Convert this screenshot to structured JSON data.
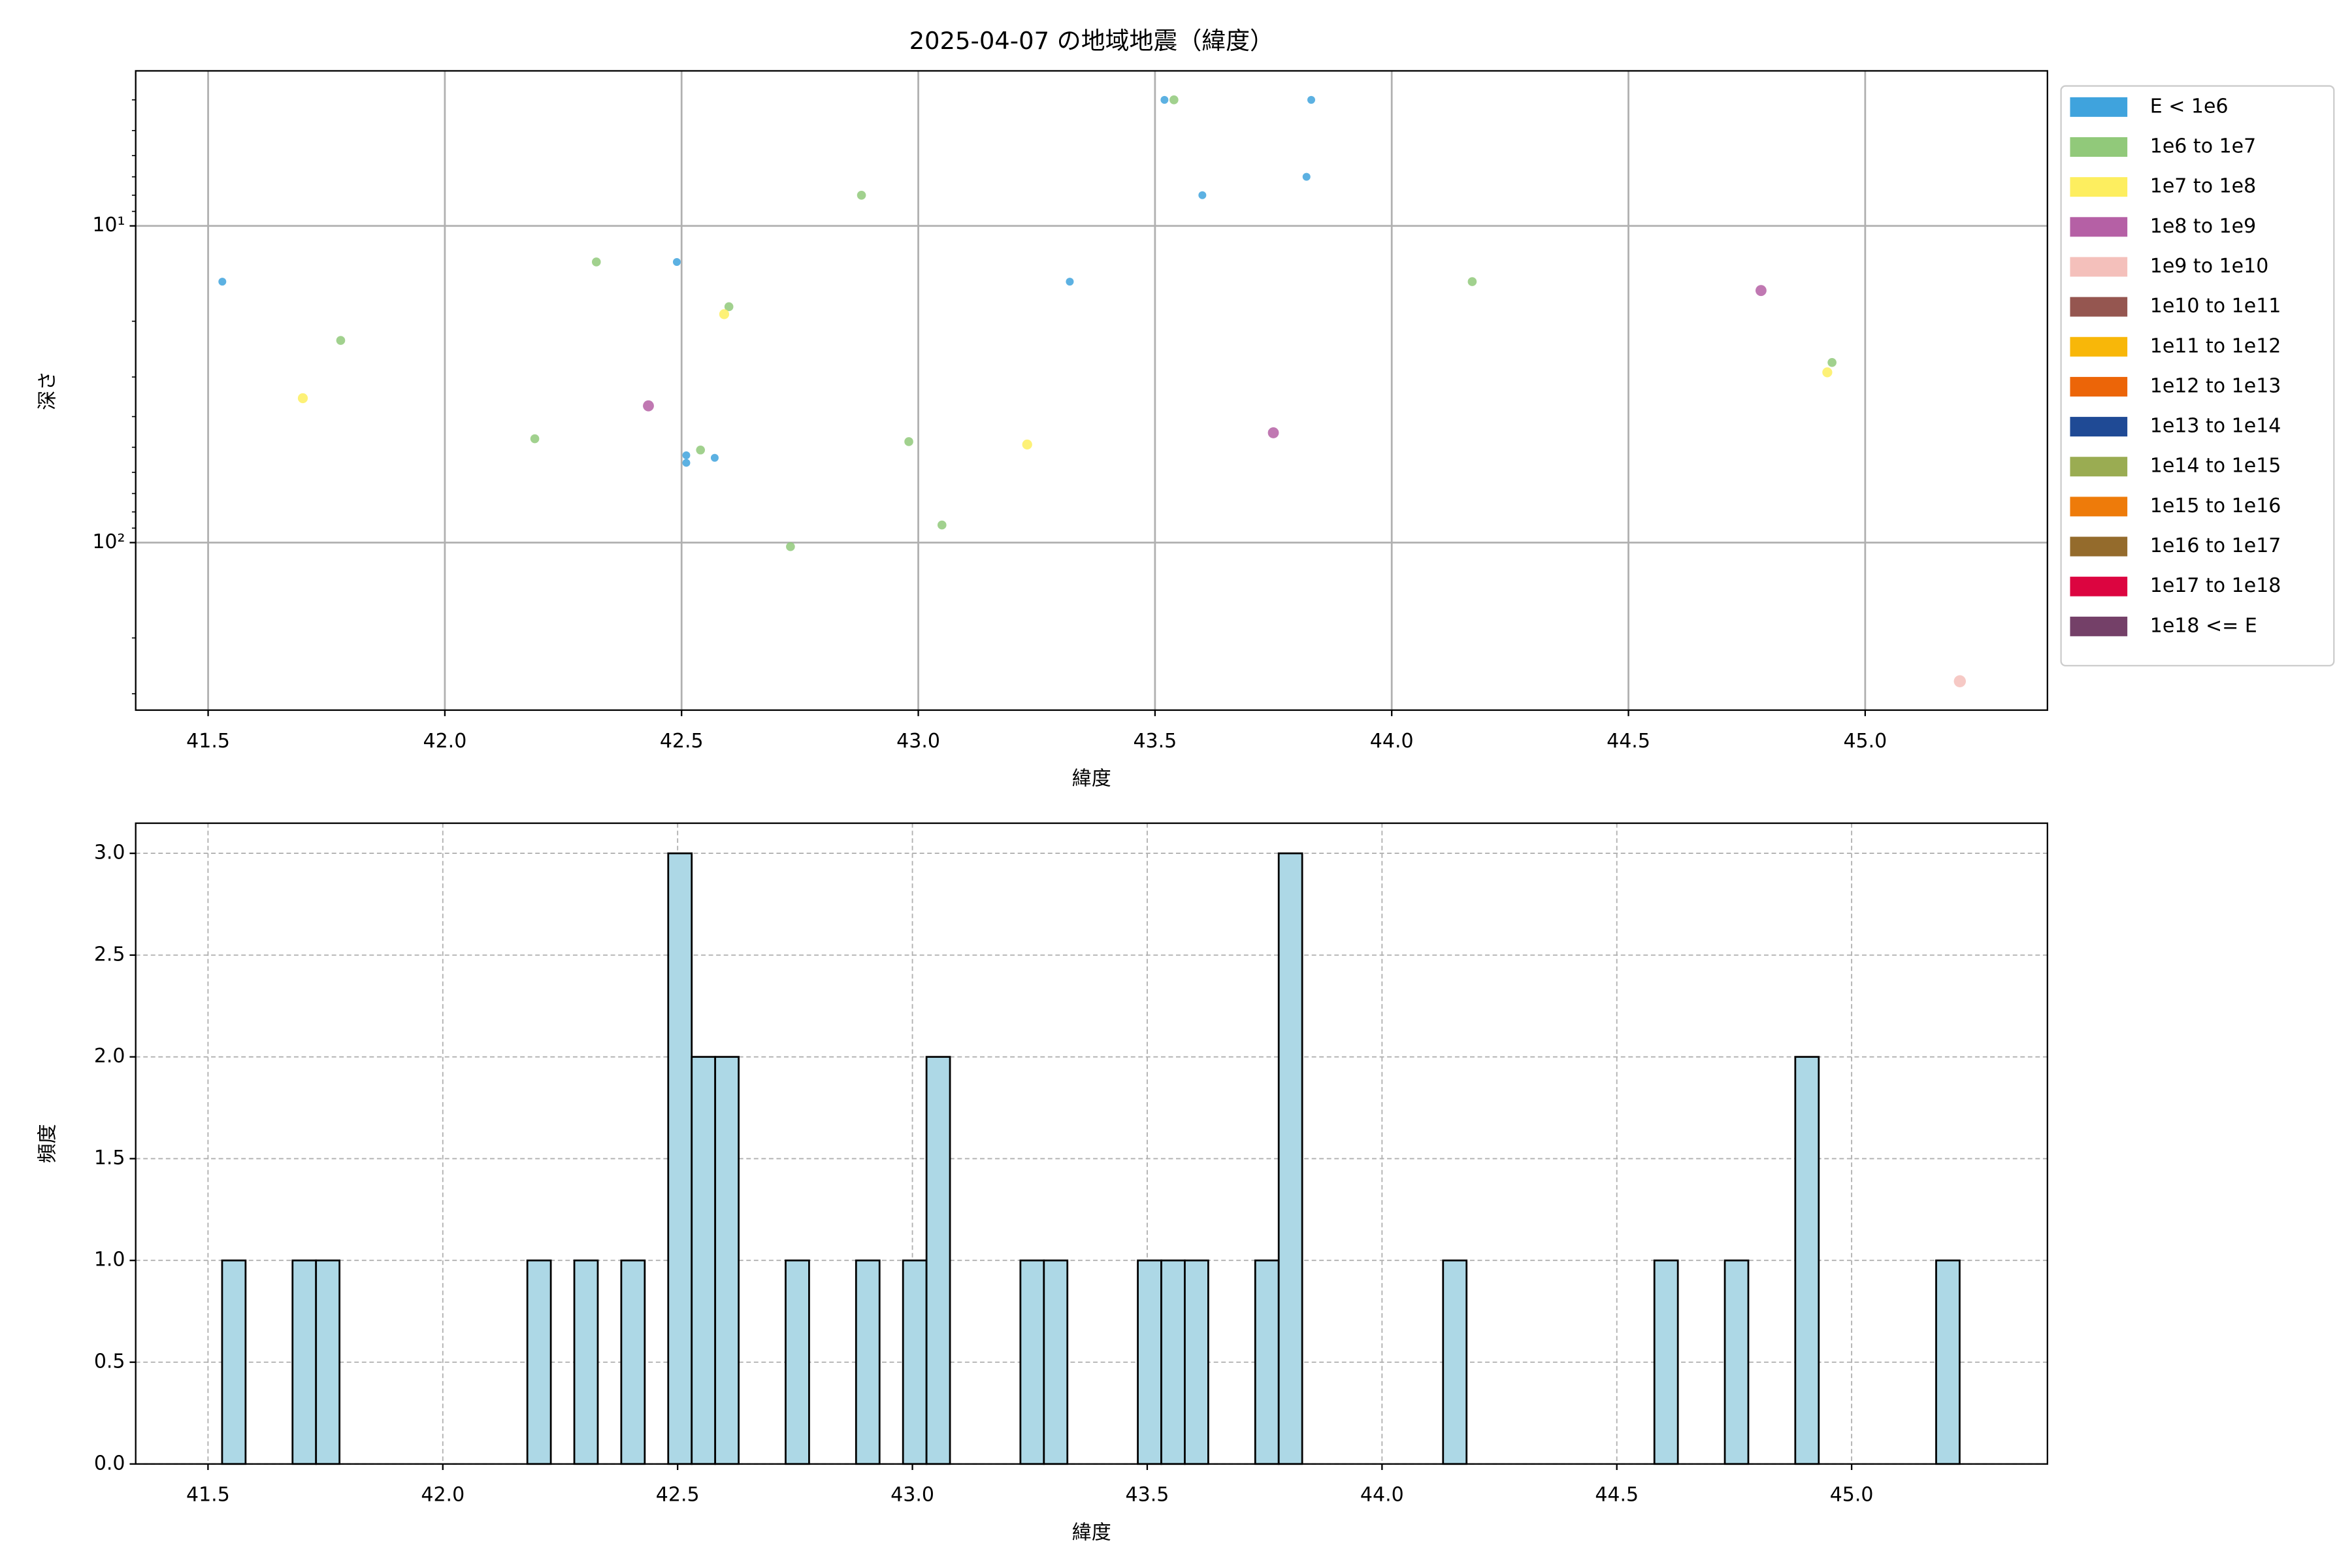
{
  "chart_data": [
    {
      "type": "scatter",
      "title": "2025-04-07 の地域地震（緯度）",
      "x_label": "緯度",
      "y_label": "深さ",
      "xlim": [
        41.347,
        45.385
      ],
      "xticks": [
        41.5,
        {
          "value": 42,
          "label": "42.0"
        },
        42.5,
        {
          "value": 43,
          "label": "43.0"
        },
        43.5,
        {
          "value": 44,
          "label": "44.0"
        },
        44.5,
        {
          "value": 45,
          "label": "45.0"
        }
      ],
      "ylim": [
        338,
        3.24
      ],
      "yscale": "log",
      "yticks": [
        {
          "value": 10,
          "label": "10¹"
        },
        {
          "value": 100,
          "label": "10²"
        }
      ],
      "yminorticks": [
        4,
        5,
        6,
        7,
        8,
        9,
        20,
        30,
        40,
        50,
        60,
        70,
        80,
        90,
        200,
        300
      ],
      "grid": "solid",
      "legend": "outside right",
      "series": [
        {
          "name": "E < 1e6",
          "color": "#3fa3dd",
          "x": [
            41.53,
            42.49,
            42.51,
            42.51,
            42.57,
            43.32,
            43.52,
            43.6,
            43.82,
            43.83
          ],
          "values": [
            15,
            13,
            53,
            56,
            54,
            15,
            4.0,
            8,
            7,
            4.0
          ]
        },
        {
          "name": "1e6 to 1e7",
          "color": "#91c97a",
          "x": [
            41.78,
            42.19,
            42.32,
            42.54,
            42.6,
            42.73,
            42.88,
            42.98,
            43.05,
            43.54,
            44.17,
            44.93
          ],
          "values": [
            23,
            47,
            13,
            51,
            18,
            103,
            8,
            48,
            88,
            4.0,
            15,
            27
          ]
        },
        {
          "name": "1e7 to 1e8",
          "color": "#fdee5f",
          "x": [
            41.7,
            42.59,
            43.23,
            44.92
          ],
          "values": [
            35,
            19,
            49,
            29
          ]
        },
        {
          "name": "1e8 to 1e9",
          "color": "#b560a5",
          "x": [
            42.43,
            43.75,
            44.78
          ],
          "values": [
            37,
            45,
            16
          ]
        },
        {
          "name": "1e9 to 1e10",
          "color": "#f4c0bb",
          "x": [
            45.2
          ],
          "values": [
            274
          ]
        },
        {
          "name": "1e10 to 1e11",
          "color": "#955650",
          "x": [],
          "values": []
        },
        {
          "name": "1e11 to 1e12",
          "color": "#f8b709",
          "x": [],
          "values": []
        },
        {
          "name": "1e12 to 1e13",
          "color": "#ec6508",
          "x": [],
          "values": []
        },
        {
          "name": "1e13 to 1e14",
          "color": "#1f4a95",
          "x": [],
          "values": []
        },
        {
          "name": "1e14 to 1e15",
          "color": "#9aac52",
          "x": [],
          "values": []
        },
        {
          "name": "1e15 to 1e16",
          "color": "#ee7b0a",
          "x": [],
          "values": []
        },
        {
          "name": "1e16 to 1e17",
          "color": "#946b2c",
          "x": [],
          "values": []
        },
        {
          "name": "1e17 to 1e18",
          "color": "#dc0540",
          "x": [],
          "values": []
        },
        {
          "name": "1e18 <= E",
          "color": "#744068",
          "x": [],
          "values": []
        }
      ]
    },
    {
      "type": "histogram",
      "x_label": "緯度",
      "y_label": "頻度",
      "color": "#add8e6",
      "edgecolor": "#000000",
      "xlim": [
        41.346,
        45.417
      ],
      "xticks": [
        41.5,
        {
          "value": 42,
          "label": "42.0"
        },
        42.5,
        {
          "value": 43,
          "label": "43.0"
        },
        43.5,
        {
          "value": 44,
          "label": "44.0"
        },
        44.5,
        {
          "value": 45,
          "label": "45.0"
        }
      ],
      "ylim": [
        0,
        3.148
      ],
      "yticks": [
        {
          "value": 0,
          "label": "0.0"
        },
        0.5,
        {
          "value": 1,
          "label": "1.0"
        },
        1.5,
        {
          "value": 2,
          "label": "2.0"
        },
        2.5,
        {
          "value": 3,
          "label": "3.0"
        }
      ],
      "grid": "dashed",
      "bins": [
        41.53,
        41.58,
        41.63,
        41.68,
        41.73,
        41.78,
        41.83,
        41.88,
        41.93,
        41.98,
        42.03,
        42.08,
        42.13,
        42.18,
        42.23,
        42.28,
        42.33,
        42.38,
        42.43,
        42.48,
        42.53,
        42.58,
        42.63,
        42.68,
        42.73,
        42.78,
        42.83,
        42.88,
        42.93,
        42.98,
        43.03,
        43.08,
        43.13,
        43.18,
        43.23,
        43.28,
        43.33,
        43.38,
        43.43,
        43.48,
        43.53,
        43.58,
        43.63,
        43.68,
        43.73,
        43.78,
        43.83,
        43.88,
        43.93,
        43.98,
        44.03,
        44.08,
        44.13,
        44.18,
        44.23,
        44.28,
        44.33,
        44.38,
        44.43,
        44.48,
        44.53,
        44.58,
        44.63,
        44.68,
        44.73,
        44.78,
        44.83,
        44.88,
        44.93,
        44.98,
        45.03,
        45.08,
        45.13,
        45.18,
        45.23
      ],
      "values": [
        1,
        0,
        0,
        1,
        1,
        0,
        0,
        0,
        0,
        0,
        0,
        0,
        0,
        1,
        0,
        1,
        0,
        1,
        0,
        3,
        2,
        2,
        0,
        0,
        1,
        0,
        0,
        1,
        0,
        1,
        2,
        0,
        0,
        0,
        1,
        1,
        0,
        0,
        0,
        1,
        1,
        1,
        0,
        0,
        1,
        3,
        0,
        0,
        0,
        0,
        0,
        0,
        1,
        0,
        0,
        0,
        0,
        0,
        0,
        0,
        0,
        1,
        0,
        0,
        1,
        0,
        0,
        2,
        0,
        0,
        0,
        0,
        0,
        1
      ]
    }
  ]
}
